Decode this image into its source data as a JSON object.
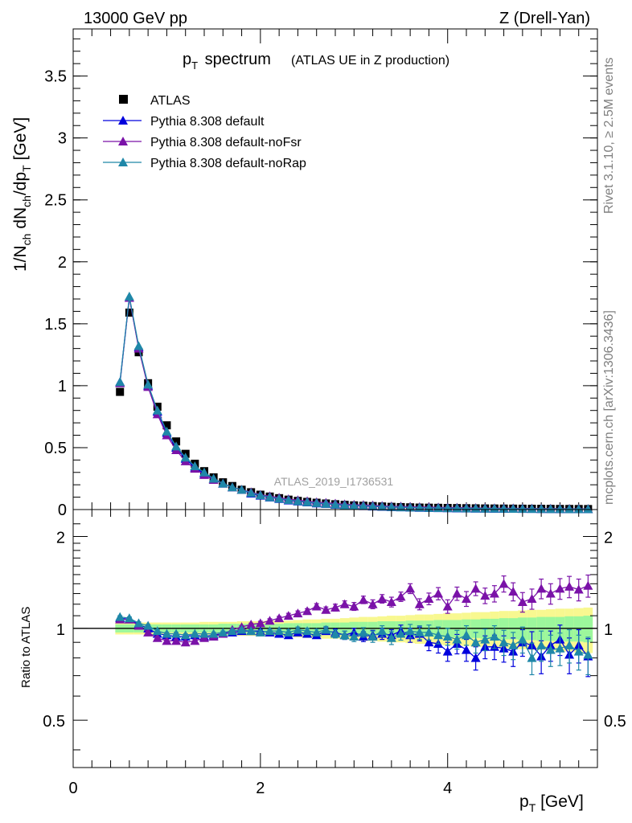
{
  "header": {
    "left": "13000 GeV pp",
    "right": "Z (Drell-Yan)"
  },
  "side_labels": {
    "rivet": "Rivet 3.1.10, ≥ 2.5M events",
    "mcplots": "mcplots.cern.ch [arXiv:1306.3436]"
  },
  "colors": {
    "data": "#000000",
    "default": "#0000dd",
    "noFsr": "#7a12a8",
    "noRap": "#1f87a8",
    "band_inner": "#9cf79c",
    "band_outer": "#f8f890"
  },
  "chart_data": [
    {
      "type": "scatter",
      "panel": "main",
      "title": "p_T spectrum",
      "subtitle": "(ATLAS UE in Z production)",
      "watermark": "ATLAS_2019_I1736531",
      "xlabel": "p_T [GeV]",
      "ylabel": "1/N_ch dN_ch/dp_T [GeV]",
      "xlim": [
        0,
        5.6
      ],
      "ylim": [
        0,
        3.88
      ],
      "y_ticks": [
        "0",
        "0.5",
        "1",
        "1.5",
        "2",
        "2.5",
        "3",
        "3.5"
      ],
      "y_tick_values": [
        0,
        0.5,
        1,
        1.5,
        2,
        2.5,
        3,
        3.5
      ],
      "legend_position": "top-left",
      "x": [
        0.5,
        0.6,
        0.7,
        0.8,
        0.9,
        1.0,
        1.1,
        1.2,
        1.3,
        1.4,
        1.5,
        1.6,
        1.7,
        1.8,
        1.9,
        2.0,
        2.1,
        2.2,
        2.3,
        2.4,
        2.5,
        2.6,
        2.7,
        2.8,
        2.9,
        3.0,
        3.1,
        3.2,
        3.3,
        3.4,
        3.5,
        3.6,
        3.7,
        3.8,
        3.9,
        4.0,
        4.1,
        4.2,
        4.3,
        4.4,
        4.5,
        4.6,
        4.7,
        4.8,
        4.9,
        5.0,
        5.1,
        5.2,
        5.3,
        5.4,
        5.5
      ],
      "series": [
        {
          "name": "ATLAS",
          "values": [
            0.95,
            1.59,
            1.27,
            1.02,
            0.83,
            0.68,
            0.55,
            0.45,
            0.37,
            0.31,
            0.26,
            0.22,
            0.19,
            0.16,
            0.14,
            0.12,
            0.105,
            0.092,
            0.08,
            0.07,
            0.062,
            0.055,
            0.049,
            0.043,
            0.038,
            0.034,
            0.031,
            0.028,
            0.025,
            0.022,
            0.02,
            0.018,
            0.016,
            0.015,
            0.014,
            0.013,
            0.012,
            0.011,
            0.01,
            0.009,
            0.0085,
            0.008,
            0.0075,
            0.007,
            0.0065,
            0.006,
            0.0055,
            0.005,
            0.0048,
            0.0045,
            0.0042
          ]
        },
        {
          "name": "Pythia 8.308 default",
          "values": [
            1.03,
            1.71,
            1.31,
            1.0,
            0.79,
            0.62,
            0.5,
            0.41,
            0.34,
            0.29,
            0.25,
            0.21,
            0.18,
            0.16,
            0.13,
            0.113,
            0.098,
            0.086,
            0.074,
            0.066,
            0.058,
            0.05,
            0.046,
            0.04,
            0.035,
            0.032,
            0.028,
            0.025,
            0.023,
            0.02,
            0.019,
            0.017,
            0.015,
            0.013,
            0.012,
            0.011,
            0.01,
            0.009,
            0.0085,
            0.0078,
            0.007,
            0.0068,
            0.0062,
            0.0058,
            0.0055,
            0.0052,
            0.0048,
            0.0044,
            0.004,
            0.0038,
            0.0035
          ]
        },
        {
          "name": "Pythia 8.308 default-noFsr",
          "values": [
            1.02,
            1.71,
            1.3,
            0.99,
            0.77,
            0.6,
            0.48,
            0.39,
            0.33,
            0.28,
            0.24,
            0.21,
            0.18,
            0.16,
            0.14,
            0.12,
            0.108,
            0.096,
            0.084,
            0.076,
            0.068,
            0.06,
            0.055,
            0.049,
            0.043,
            0.039,
            0.037,
            0.034,
            0.03,
            0.027,
            0.025,
            0.023,
            0.021,
            0.02,
            0.018,
            0.017,
            0.016,
            0.015,
            0.013,
            0.012,
            0.011,
            0.011,
            0.0105,
            0.0095,
            0.0088,
            0.0083,
            0.0078,
            0.0072,
            0.0067,
            0.0063,
            0.0058
          ]
        },
        {
          "name": "Pythia 8.308 default-noRap",
          "values": [
            1.03,
            1.72,
            1.32,
            1.01,
            0.8,
            0.63,
            0.51,
            0.42,
            0.35,
            0.3,
            0.25,
            0.21,
            0.18,
            0.16,
            0.135,
            0.116,
            0.1,
            0.088,
            0.077,
            0.068,
            0.06,
            0.053,
            0.047,
            0.041,
            0.036,
            0.032,
            0.03,
            0.027,
            0.024,
            0.021,
            0.019,
            0.017,
            0.016,
            0.014,
            0.013,
            0.012,
            0.011,
            0.01,
            0.0092,
            0.0084,
            0.0078,
            0.0072,
            0.0068,
            0.0062,
            0.0058,
            0.0054,
            0.005,
            0.0046,
            0.0043,
            0.0041,
            0.0038
          ]
        }
      ]
    },
    {
      "type": "scatter",
      "panel": "ratio",
      "ylabel": "Ratio to ATLAS",
      "xlabel": "p_T [GeV]",
      "xlim": [
        0,
        5.6
      ],
      "ylim": [
        0.35,
        2.45
      ],
      "y_scale": "log",
      "x_ticks": [
        "0",
        "2",
        "4"
      ],
      "x_tick_values": [
        0,
        2,
        4
      ],
      "y_ticks": [
        "0.5",
        "1",
        "2"
      ],
      "y_tick_values": [
        0.5,
        1,
        2
      ],
      "x": [
        0.5,
        0.6,
        0.7,
        0.8,
        0.9,
        1.0,
        1.1,
        1.2,
        1.3,
        1.4,
        1.5,
        1.6,
        1.7,
        1.8,
        1.9,
        2.0,
        2.1,
        2.2,
        2.3,
        2.4,
        2.5,
        2.6,
        2.7,
        2.8,
        2.9,
        3.0,
        3.1,
        3.2,
        3.3,
        3.4,
        3.5,
        3.6,
        3.7,
        3.8,
        3.9,
        4.0,
        4.1,
        4.2,
        4.3,
        4.4,
        4.5,
        4.6,
        4.7,
        4.8,
        4.9,
        5.0,
        5.1,
        5.2,
        5.3,
        5.4,
        5.5
      ],
      "band_inner": [
        0.03,
        0.03,
        0.03,
        0.03,
        0.03,
        0.03,
        0.03,
        0.03,
        0.03,
        0.03,
        0.03,
        0.035,
        0.035,
        0.035,
        0.035,
        0.035,
        0.035,
        0.035,
        0.04,
        0.04,
        0.04,
        0.04,
        0.045,
        0.045,
        0.045,
        0.05,
        0.05,
        0.05,
        0.055,
        0.055,
        0.055,
        0.06,
        0.06,
        0.06,
        0.065,
        0.065,
        0.065,
        0.07,
        0.07,
        0.075,
        0.075,
        0.08,
        0.08,
        0.085,
        0.085,
        0.09,
        0.09,
        0.09,
        0.095,
        0.095,
        0.1
      ],
      "band_outer": [
        0.045,
        0.045,
        0.045,
        0.045,
        0.045,
        0.045,
        0.045,
        0.045,
        0.045,
        0.05,
        0.05,
        0.05,
        0.05,
        0.055,
        0.055,
        0.055,
        0.06,
        0.06,
        0.06,
        0.065,
        0.07,
        0.07,
        0.075,
        0.075,
        0.08,
        0.085,
        0.09,
        0.09,
        0.095,
        0.1,
        0.1,
        0.105,
        0.11,
        0.11,
        0.115,
        0.12,
        0.12,
        0.125,
        0.13,
        0.13,
        0.135,
        0.14,
        0.14,
        0.145,
        0.15,
        0.15,
        0.155,
        0.16,
        0.16,
        0.165,
        0.17
      ],
      "series": [
        {
          "name": "Pythia 8.308 default",
          "values": [
            1.08,
            1.07,
            1.03,
            1.0,
            0.96,
            0.95,
            0.94,
            0.94,
            0.95,
            0.94,
            0.95,
            0.96,
            0.97,
            0.98,
            0.98,
            0.98,
            0.97,
            0.96,
            0.95,
            0.97,
            0.96,
            0.95,
            0.98,
            0.97,
            0.95,
            0.97,
            0.94,
            0.95,
            0.96,
            0.95,
            0.98,
            0.95,
            0.96,
            0.9,
            0.89,
            0.84,
            0.89,
            0.85,
            0.8,
            0.87,
            0.87,
            0.86,
            0.84,
            0.9,
            0.88,
            0.81,
            0.88,
            0.92,
            0.82,
            0.88,
            0.81
          ],
          "errors": [
            0.01,
            0.01,
            0.01,
            0.01,
            0.01,
            0.01,
            0.01,
            0.01,
            0.01,
            0.01,
            0.01,
            0.01,
            0.01,
            0.01,
            0.01,
            0.01,
            0.015,
            0.015,
            0.015,
            0.02,
            0.02,
            0.02,
            0.025,
            0.025,
            0.03,
            0.03,
            0.035,
            0.035,
            0.04,
            0.04,
            0.045,
            0.05,
            0.05,
            0.055,
            0.06,
            0.06,
            0.065,
            0.07,
            0.07,
            0.075,
            0.08,
            0.085,
            0.09,
            0.09,
            0.095,
            0.1,
            0.1,
            0.105,
            0.11,
            0.11,
            0.115
          ]
        },
        {
          "name": "Pythia 8.308 default-noFsr",
          "values": [
            1.07,
            1.07,
            1.02,
            0.97,
            0.93,
            0.91,
            0.91,
            0.9,
            0.91,
            0.93,
            0.94,
            0.96,
            0.99,
            1.01,
            1.03,
            1.04,
            1.06,
            1.08,
            1.1,
            1.12,
            1.14,
            1.18,
            1.15,
            1.17,
            1.2,
            1.18,
            1.24,
            1.2,
            1.25,
            1.22,
            1.27,
            1.35,
            1.2,
            1.25,
            1.3,
            1.18,
            1.3,
            1.25,
            1.35,
            1.28,
            1.3,
            1.4,
            1.32,
            1.22,
            1.25,
            1.35,
            1.3,
            1.35,
            1.37,
            1.34,
            1.38
          ],
          "errors": [
            0.01,
            0.01,
            0.01,
            0.01,
            0.01,
            0.01,
            0.01,
            0.01,
            0.01,
            0.01,
            0.01,
            0.01,
            0.01,
            0.01,
            0.01,
            0.015,
            0.015,
            0.015,
            0.02,
            0.02,
            0.02,
            0.025,
            0.025,
            0.03,
            0.03,
            0.035,
            0.035,
            0.04,
            0.04,
            0.045,
            0.045,
            0.05,
            0.05,
            0.055,
            0.06,
            0.06,
            0.065,
            0.07,
            0.07,
            0.075,
            0.08,
            0.085,
            0.09,
            0.09,
            0.095,
            0.1,
            0.1,
            0.105,
            0.11,
            0.11,
            0.115
          ]
        },
        {
          "name": "Pythia 8.308 default-noRap",
          "values": [
            1.09,
            1.08,
            1.04,
            1.02,
            0.98,
            0.96,
            0.96,
            0.95,
            0.96,
            0.96,
            0.96,
            0.97,
            0.98,
            0.99,
            0.98,
            0.97,
            0.98,
            0.98,
            0.97,
            0.99,
            0.98,
            0.97,
            0.99,
            0.96,
            0.95,
            0.94,
            0.97,
            0.94,
            0.98,
            0.93,
            0.96,
            0.98,
            0.97,
            0.97,
            0.95,
            0.94,
            0.92,
            0.95,
            0.9,
            0.92,
            0.94,
            0.9,
            0.88,
            0.92,
            0.8,
            0.88,
            0.85,
            0.86,
            0.88,
            0.84,
            0.82
          ],
          "errors": [
            0.01,
            0.01,
            0.01,
            0.01,
            0.01,
            0.01,
            0.01,
            0.01,
            0.01,
            0.01,
            0.01,
            0.01,
            0.01,
            0.01,
            0.01,
            0.015,
            0.015,
            0.015,
            0.02,
            0.02,
            0.02,
            0.025,
            0.025,
            0.03,
            0.03,
            0.035,
            0.035,
            0.04,
            0.04,
            0.045,
            0.045,
            0.05,
            0.05,
            0.055,
            0.06,
            0.06,
            0.065,
            0.07,
            0.07,
            0.075,
            0.08,
            0.085,
            0.09,
            0.09,
            0.095,
            0.1,
            0.1,
            0.105,
            0.11,
            0.11,
            0.115
          ]
        }
      ]
    }
  ]
}
